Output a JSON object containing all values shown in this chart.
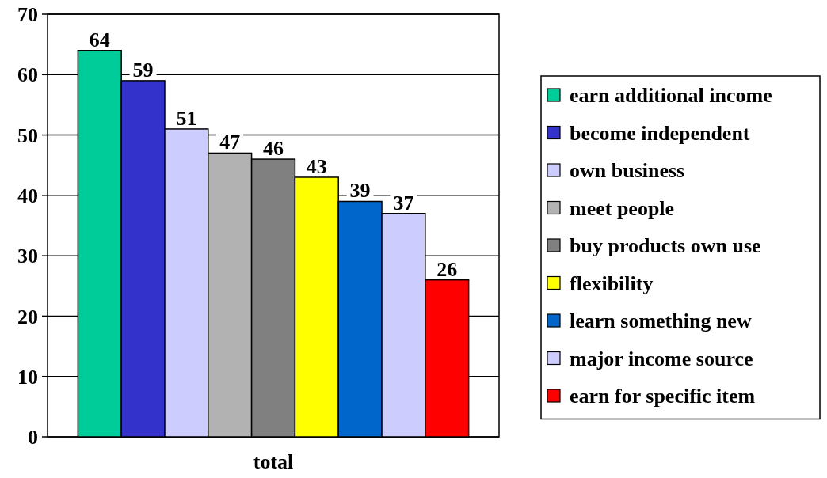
{
  "chart_data": {
    "type": "bar",
    "categories": [
      "total"
    ],
    "series": [
      {
        "name": "earn additional income",
        "color": "#00cc99",
        "values": [
          64
        ]
      },
      {
        "name": "become independent",
        "color": "#3333cc",
        "values": [
          59
        ]
      },
      {
        "name": "own business",
        "color": "#ccccff",
        "values": [
          51
        ]
      },
      {
        "name": "meet people",
        "color": "#b2b2b2",
        "values": [
          47
        ]
      },
      {
        "name": "buy products own use",
        "color": "#808080",
        "values": [
          46
        ]
      },
      {
        "name": "flexibility",
        "color": "#ffff00",
        "values": [
          43
        ]
      },
      {
        "name": "learn something new",
        "color": "#0066cc",
        "values": [
          39
        ]
      },
      {
        "name": "major income source",
        "color": "#ccccff",
        "values": [
          37
        ]
      },
      {
        "name": "earn for specific item",
        "color": "#ff0000",
        "values": [
          26
        ]
      }
    ],
    "ylim": [
      0,
      70
    ],
    "yticks": [
      0,
      10,
      20,
      30,
      40,
      50,
      60,
      70
    ],
    "grid": "y",
    "legend": "right",
    "data_labels": true
  }
}
